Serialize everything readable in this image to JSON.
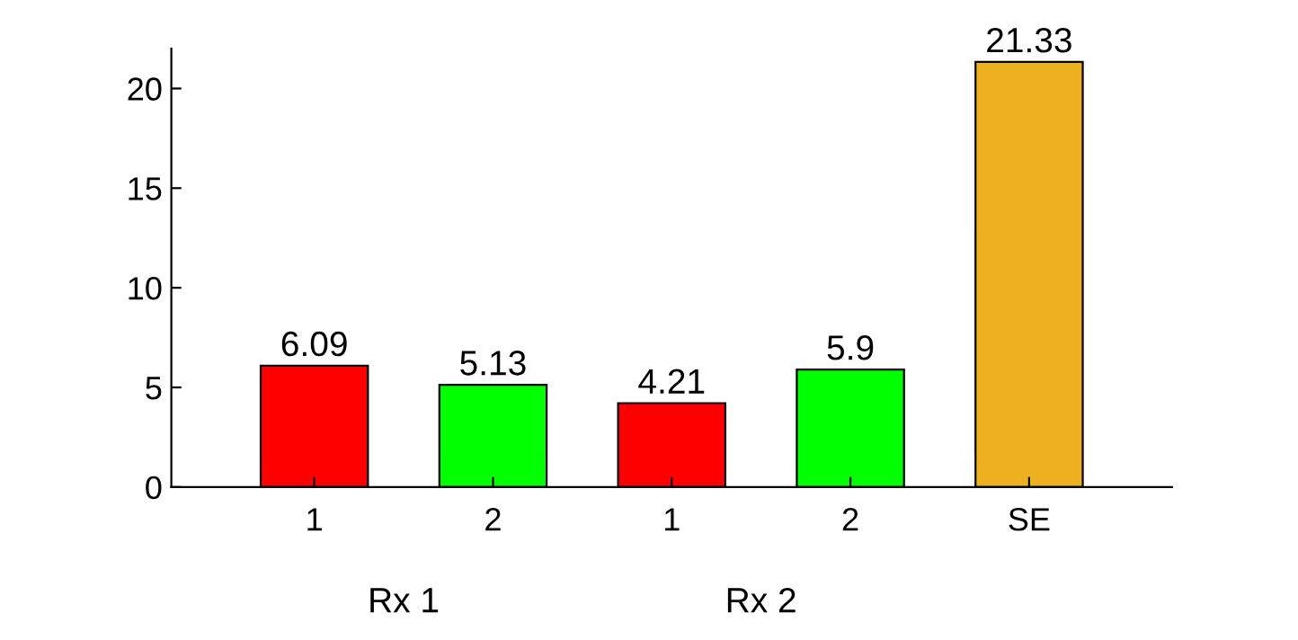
{
  "chart_data": {
    "type": "bar",
    "categories": [
      "1",
      "2",
      "1",
      "2",
      "SE"
    ],
    "values": [
      6.09,
      5.13,
      4.21,
      5.9,
      21.33
    ],
    "colors": [
      "#ff0000",
      "#00ff00",
      "#ff0000",
      "#00ff00",
      "#edb120"
    ],
    "ylim": [
      0,
      22
    ],
    "yticks": [
      0,
      5,
      10,
      15,
      20
    ],
    "data_labels": true,
    "grid": false,
    "legend": false,
    "annotations": [
      "Rx 1",
      "Rx 2"
    ]
  }
}
